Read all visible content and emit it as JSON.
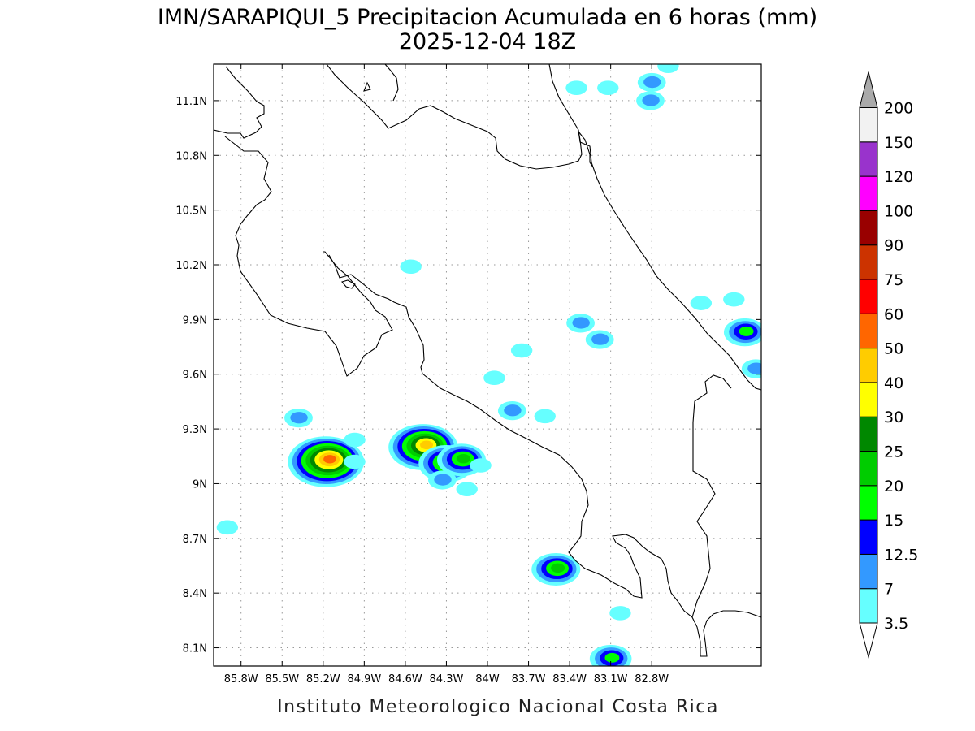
{
  "title": "IMN/SARAPIQUI_5 Precipitacion Acumulada en 6 horas (mm)",
  "subtitle": "2025-12-04 18Z",
  "footer": "Instituto Meteorologico Nacional Costa Rica",
  "map": {
    "lon_range": [
      -86.0,
      -82.0
    ],
    "lat_range": [
      8.0,
      11.3
    ],
    "x_ticks": [
      {
        "value": -85.8,
        "label": "85.8W"
      },
      {
        "value": -85.5,
        "label": "85.5W"
      },
      {
        "value": -85.2,
        "label": "85.2W"
      },
      {
        "value": -84.9,
        "label": "84.9W"
      },
      {
        "value": -84.6,
        "label": "84.6W"
      },
      {
        "value": -84.3,
        "label": "84.3W"
      },
      {
        "value": -84.0,
        "label": "84W"
      },
      {
        "value": -83.7,
        "label": "83.7W"
      },
      {
        "value": -83.4,
        "label": "83.4W"
      },
      {
        "value": -83.1,
        "label": "83.1W"
      },
      {
        "value": -82.8,
        "label": "82.8W"
      }
    ],
    "y_ticks": [
      {
        "value": 8.1,
        "label": "8.1N"
      },
      {
        "value": 8.4,
        "label": "8.4N"
      },
      {
        "value": 8.7,
        "label": "8.7N"
      },
      {
        "value": 9.0,
        "label": "9N"
      },
      {
        "value": 9.3,
        "label": "9.3N"
      },
      {
        "value": 9.6,
        "label": "9.6N"
      },
      {
        "value": 9.9,
        "label": "9.9N"
      },
      {
        "value": 10.2,
        "label": "10.2N"
      },
      {
        "value": 10.5,
        "label": "10.5N"
      },
      {
        "value": 10.8,
        "label": "10.8N"
      },
      {
        "value": 11.1,
        "label": "11.1N"
      }
    ],
    "grid": true
  },
  "legend": {
    "levels": [
      {
        "label": "3.5",
        "color": "#66ffff"
      },
      {
        "label": "7",
        "color": "#3399ff"
      },
      {
        "label": "12.5",
        "color": "#0000ff"
      },
      {
        "label": "15",
        "color": "#00ff00"
      },
      {
        "label": "20",
        "color": "#00cc00"
      },
      {
        "label": "25",
        "color": "#008800"
      },
      {
        "label": "30",
        "color": "#ffff00"
      },
      {
        "label": "40",
        "color": "#ffcc00"
      },
      {
        "label": "50",
        "color": "#ff6600"
      },
      {
        "label": "60",
        "color": "#ff0000"
      },
      {
        "label": "75",
        "color": "#cc3300"
      },
      {
        "label": "90",
        "color": "#990000"
      },
      {
        "label": "100",
        "color": "#ff00ff"
      },
      {
        "label": "120",
        "color": "#9933cc"
      },
      {
        "label": "150",
        "color": "#f2f2f2"
      },
      {
        "label": "200",
        "color": "#aaaaaa"
      }
    ],
    "below_color": "#ffffff"
  },
  "precip_cells": [
    {
      "lon": -85.18,
      "lat": 9.12,
      "level": 9
    },
    {
      "lon": -84.47,
      "lat": 9.2,
      "level": 8
    },
    {
      "lon": -84.3,
      "lat": 9.11,
      "level": 6
    },
    {
      "lon": -84.19,
      "lat": 9.13,
      "level": 5
    },
    {
      "lon": -85.38,
      "lat": 9.36,
      "level": 2
    },
    {
      "lon": -84.33,
      "lat": 9.02,
      "level": 2
    },
    {
      "lon": -83.82,
      "lat": 9.4,
      "level": 2
    },
    {
      "lon": -83.5,
      "lat": 8.53,
      "level": 5
    },
    {
      "lon": -83.1,
      "lat": 8.04,
      "level": 4
    },
    {
      "lon": -83.03,
      "lat": 8.29,
      "level": 1
    },
    {
      "lon": -82.8,
      "lat": 11.2,
      "level": 2
    },
    {
      "lon": -82.81,
      "lat": 11.1,
      "level": 2
    },
    {
      "lon": -83.12,
      "lat": 11.17,
      "level": 1
    },
    {
      "lon": -83.35,
      "lat": 11.17,
      "level": 1
    },
    {
      "lon": -82.68,
      "lat": 11.29,
      "level": 1
    },
    {
      "lon": -82.12,
      "lat": 9.83,
      "level": 4
    },
    {
      "lon": -82.04,
      "lat": 9.63,
      "level": 2
    },
    {
      "lon": -82.44,
      "lat": 9.99,
      "level": 1
    },
    {
      "lon": -82.2,
      "lat": 10.01,
      "level": 1
    },
    {
      "lon": -83.32,
      "lat": 9.88,
      "level": 2
    },
    {
      "lon": -83.18,
      "lat": 9.79,
      "level": 2
    },
    {
      "lon": -83.75,
      "lat": 9.73,
      "level": 1
    },
    {
      "lon": -83.95,
      "lat": 9.58,
      "level": 1
    },
    {
      "lon": -84.56,
      "lat": 10.19,
      "level": 1
    },
    {
      "lon": -85.9,
      "lat": 8.76,
      "level": 1
    },
    {
      "lon": -84.05,
      "lat": 9.1,
      "level": 1
    },
    {
      "lon": -83.58,
      "lat": 9.37,
      "level": 1
    },
    {
      "lon": -84.15,
      "lat": 8.97,
      "level": 1
    },
    {
      "lon": -84.97,
      "lat": 9.24,
      "level": 1
    },
    {
      "lon": -84.97,
      "lat": 9.12,
      "level": 1
    }
  ]
}
